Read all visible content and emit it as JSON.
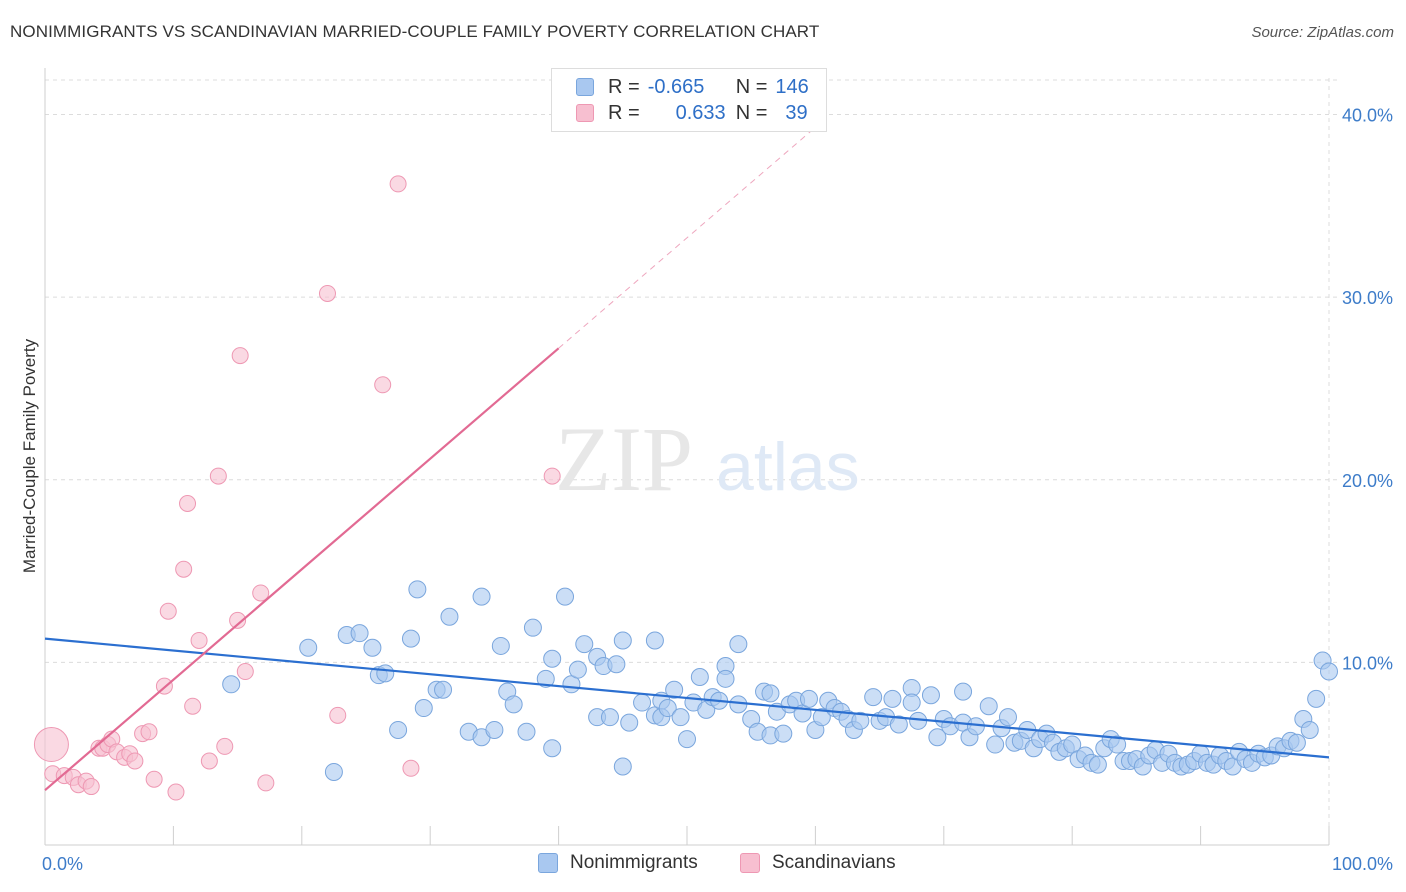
{
  "title": "NONIMMIGRANTS VS SCANDINAVIAN MARRIED-COUPLE FAMILY POVERTY CORRELATION CHART",
  "source": "Source: ZipAtlas.com",
  "watermark": {
    "zip": "ZIP",
    "atlas": "atlas"
  },
  "colors": {
    "blue_fill": "#a9c8f0",
    "blue_stroke": "#7aa6dd",
    "blue_line": "#2b6fd0",
    "pink_fill": "#f7bfd0",
    "pink_stroke": "#ee98b3",
    "pink_line": "#e26a93",
    "grid": "#dcdcdc",
    "tick_text": "#3d7cc9"
  },
  "legend": {
    "rows": [
      {
        "r_label": "R =",
        "r_value": "-0.665",
        "n_label": "N =",
        "n_value": "146"
      },
      {
        "r_label": "R =",
        "r_value": "0.633",
        "n_label": "N =",
        "n_value": "39"
      }
    ]
  },
  "bottom_legend": {
    "blue": "Nonimmigrants",
    "pink": "Scandinavians"
  },
  "chart_data": {
    "type": "scatter",
    "title": "NONIMMIGRANTS VS SCANDINAVIAN MARRIED-COUPLE FAMILY POVERTY CORRELATION CHART",
    "xlabel": "",
    "ylabel": "Married-Couple Family Poverty",
    "xlim": [
      0,
      100
    ],
    "ylim": [
      0,
      42
    ],
    "x_tick_labels": [
      "0.0%",
      "100.0%"
    ],
    "y_ticks": [
      10,
      20,
      30,
      40
    ],
    "y_tick_labels": [
      "10.0%",
      "20.0%",
      "30.0%",
      "40.0%"
    ],
    "grid": true,
    "series": [
      {
        "name": "Nonimmigrants",
        "r": -0.665,
        "n": 146,
        "trend": {
          "x0": 0,
          "y0": 11.3,
          "x1": 100,
          "y1": 4.8
        },
        "points": [
          [
            14.5,
            8.8
          ],
          [
            20.5,
            10.8
          ],
          [
            22.5,
            4.0
          ],
          [
            23.5,
            11.5
          ],
          [
            24.5,
            11.6
          ],
          [
            25.5,
            10.8
          ],
          [
            26.0,
            9.3
          ],
          [
            26.5,
            9.4
          ],
          [
            27.5,
            6.3
          ],
          [
            28.5,
            11.3
          ],
          [
            29.0,
            14.0
          ],
          [
            29.5,
            7.5
          ],
          [
            30.5,
            8.5
          ],
          [
            31.0,
            8.5
          ],
          [
            31.5,
            12.5
          ],
          [
            33.0,
            6.2
          ],
          [
            34.0,
            13.6
          ],
          [
            34.0,
            5.9
          ],
          [
            35.0,
            6.3
          ],
          [
            35.5,
            10.9
          ],
          [
            36.0,
            8.4
          ],
          [
            36.5,
            7.7
          ],
          [
            37.5,
            6.2
          ],
          [
            38.0,
            11.9
          ],
          [
            39.0,
            9.1
          ],
          [
            39.5,
            5.3
          ],
          [
            39.5,
            10.2
          ],
          [
            40.5,
            13.6
          ],
          [
            41.0,
            8.8
          ],
          [
            41.5,
            9.6
          ],
          [
            42.0,
            11.0
          ],
          [
            43.0,
            7.0
          ],
          [
            43.0,
            10.3
          ],
          [
            43.5,
            9.8
          ],
          [
            44.0,
            7.0
          ],
          [
            44.5,
            9.9
          ],
          [
            45.0,
            11.2
          ],
          [
            45.0,
            4.3
          ],
          [
            45.5,
            6.7
          ],
          [
            46.5,
            7.8
          ],
          [
            47.5,
            11.2
          ],
          [
            47.5,
            7.1
          ],
          [
            48.0,
            7.9
          ],
          [
            48.0,
            7.0
          ],
          [
            48.5,
            7.5
          ],
          [
            49.0,
            8.5
          ],
          [
            49.5,
            7.0
          ],
          [
            50.0,
            5.8
          ],
          [
            50.5,
            7.8
          ],
          [
            51.0,
            9.2
          ],
          [
            51.5,
            7.4
          ],
          [
            52.0,
            8.1
          ],
          [
            52.5,
            7.9
          ],
          [
            53.0,
            9.8
          ],
          [
            53.0,
            9.1
          ],
          [
            54.0,
            11.0
          ],
          [
            54.0,
            7.7
          ],
          [
            55.0,
            6.9
          ],
          [
            55.5,
            6.2
          ],
          [
            56.0,
            8.4
          ],
          [
            56.5,
            8.3
          ],
          [
            56.5,
            6.0
          ],
          [
            57.0,
            7.3
          ],
          [
            57.5,
            6.1
          ],
          [
            58.0,
            7.7
          ],
          [
            58.5,
            7.9
          ],
          [
            59.0,
            7.2
          ],
          [
            59.5,
            8.0
          ],
          [
            60.0,
            6.3
          ],
          [
            60.5,
            7.0
          ],
          [
            61.0,
            7.9
          ],
          [
            61.5,
            7.5
          ],
          [
            62.0,
            7.3
          ],
          [
            62.5,
            6.9
          ],
          [
            63.0,
            6.3
          ],
          [
            63.5,
            6.8
          ],
          [
            64.5,
            8.1
          ],
          [
            65.0,
            6.8
          ],
          [
            65.5,
            7.0
          ],
          [
            66.0,
            8.0
          ],
          [
            66.5,
            6.6
          ],
          [
            67.5,
            8.6
          ],
          [
            67.5,
            7.8
          ],
          [
            68.0,
            6.8
          ],
          [
            69.0,
            8.2
          ],
          [
            69.5,
            5.9
          ],
          [
            70.0,
            6.9
          ],
          [
            70.5,
            6.5
          ],
          [
            71.5,
            8.4
          ],
          [
            71.5,
            6.7
          ],
          [
            72.0,
            5.9
          ],
          [
            72.5,
            6.5
          ],
          [
            73.5,
            7.6
          ],
          [
            74.0,
            5.5
          ],
          [
            74.5,
            6.4
          ],
          [
            75.0,
            7.0
          ],
          [
            75.5,
            5.6
          ],
          [
            76.0,
            5.7
          ],
          [
            76.5,
            6.3
          ],
          [
            77.0,
            5.3
          ],
          [
            77.5,
            5.8
          ],
          [
            78.0,
            6.1
          ],
          [
            78.5,
            5.6
          ],
          [
            79.0,
            5.1
          ],
          [
            79.5,
            5.3
          ],
          [
            80.0,
            5.5
          ],
          [
            80.5,
            4.7
          ],
          [
            81.0,
            4.9
          ],
          [
            81.5,
            4.5
          ],
          [
            82.0,
            4.4
          ],
          [
            82.5,
            5.3
          ],
          [
            83.0,
            5.8
          ],
          [
            83.5,
            5.5
          ],
          [
            84.0,
            4.6
          ],
          [
            84.5,
            4.6
          ],
          [
            85.0,
            4.7
          ],
          [
            85.5,
            4.3
          ],
          [
            86.0,
            4.9
          ],
          [
            86.5,
            5.2
          ],
          [
            87.0,
            4.5
          ],
          [
            87.5,
            5.0
          ],
          [
            88.0,
            4.5
          ],
          [
            88.5,
            4.3
          ],
          [
            89.0,
            4.4
          ],
          [
            89.5,
            4.6
          ],
          [
            90.0,
            5.0
          ],
          [
            90.5,
            4.5
          ],
          [
            91.0,
            4.4
          ],
          [
            91.5,
            4.9
          ],
          [
            92.0,
            4.6
          ],
          [
            92.5,
            4.3
          ],
          [
            93.0,
            5.1
          ],
          [
            93.5,
            4.7
          ],
          [
            94.0,
            4.5
          ],
          [
            94.5,
            5.0
          ],
          [
            95.0,
            4.8
          ],
          [
            95.5,
            4.9
          ],
          [
            96.0,
            5.4
          ],
          [
            96.5,
            5.3
          ],
          [
            97.0,
            5.7
          ],
          [
            97.5,
            5.6
          ],
          [
            98.0,
            6.9
          ],
          [
            98.5,
            6.3
          ],
          [
            99.0,
            8.0
          ],
          [
            99.5,
            10.1
          ],
          [
            100.0,
            9.5
          ]
        ]
      },
      {
        "name": "Scandinavians",
        "r": 0.633,
        "n": 39,
        "trend": {
          "x0": 0,
          "y0": 3.0,
          "x1": 40,
          "y1": 27.2,
          "dash_x1": 60,
          "dash_y1": 39.3
        },
        "points": [
          [
            0.5,
            5.5
          ],
          [
            0.6,
            3.9
          ],
          [
            1.5,
            3.8
          ],
          [
            2.2,
            3.7
          ],
          [
            2.6,
            3.3
          ],
          [
            3.2,
            3.5
          ],
          [
            3.6,
            3.2
          ],
          [
            4.2,
            5.3
          ],
          [
            4.5,
            5.3
          ],
          [
            4.9,
            5.5
          ],
          [
            5.2,
            5.8
          ],
          [
            5.6,
            5.1
          ],
          [
            6.2,
            4.8
          ],
          [
            6.6,
            5.0
          ],
          [
            7.0,
            4.6
          ],
          [
            7.6,
            6.1
          ],
          [
            8.1,
            6.2
          ],
          [
            8.5,
            3.6
          ],
          [
            9.3,
            8.7
          ],
          [
            9.6,
            12.8
          ],
          [
            10.2,
            2.9
          ],
          [
            10.8,
            15.1
          ],
          [
            11.1,
            18.7
          ],
          [
            11.5,
            7.6
          ],
          [
            12.0,
            11.2
          ],
          [
            12.8,
            4.6
          ],
          [
            13.5,
            20.2
          ],
          [
            14.0,
            5.4
          ],
          [
            15.0,
            12.3
          ],
          [
            15.2,
            26.8
          ],
          [
            15.6,
            9.5
          ],
          [
            16.8,
            13.8
          ],
          [
            17.2,
            3.4
          ],
          [
            22.0,
            30.2
          ],
          [
            22.8,
            7.1
          ],
          [
            26.3,
            25.2
          ],
          [
            27.5,
            36.2
          ],
          [
            28.5,
            4.2
          ],
          [
            39.5,
            20.2
          ]
        ]
      }
    ]
  }
}
